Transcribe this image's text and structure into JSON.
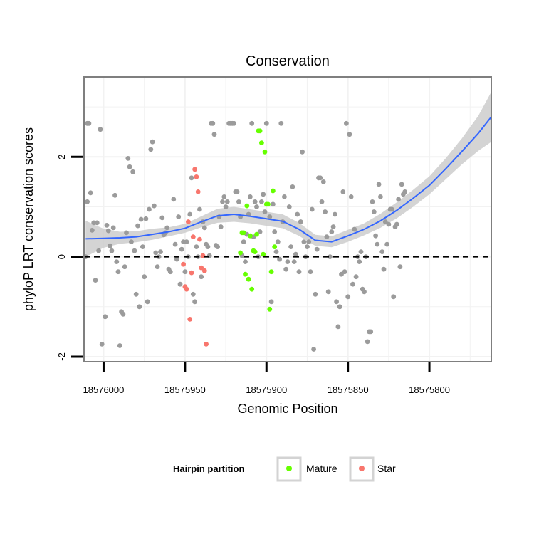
{
  "chart_data": {
    "type": "scatter",
    "title": "Conservation",
    "xlabel": "Genomic Position",
    "ylabel": "phyloP LRT conservation scores",
    "x_reversed": true,
    "xlim": [
      18576012,
      18575762
    ],
    "ylim": [
      -2.1,
      3.6
    ],
    "x_ticks": [
      18576000,
      18575950,
      18575900,
      18575850,
      18575800
    ],
    "y_ticks": [
      -2,
      0,
      2
    ],
    "reference_line": {
      "y": 0,
      "style": "dashed"
    },
    "grid": true,
    "legend": {
      "title": "Hairpin partition",
      "position": "bottom",
      "entries": [
        {
          "label": "Mature",
          "color": "#66ff00"
        },
        {
          "label": "Star",
          "color": "#f8766d"
        }
      ]
    },
    "colors": {
      "other": "#9b9b9b",
      "Mature": "#66ff00",
      "Star": "#f8766d",
      "smooth": "#3366ff",
      "ribbon": "#cccccc"
    },
    "smooth": {
      "x": [
        18576011,
        18576000,
        18575990,
        18575980,
        18575970,
        18575960,
        18575950,
        18575940,
        18575930,
        18575920,
        18575910,
        18575900,
        18575890,
        18575880,
        18575870,
        18575860,
        18575850,
        18575840,
        18575830,
        18575820,
        18575810,
        18575800,
        18575790,
        18575780,
        18575770,
        18575762
      ],
      "y": [
        0.36,
        0.37,
        0.38,
        0.4,
        0.45,
        0.5,
        0.57,
        0.7,
        0.82,
        0.85,
        0.81,
        0.76,
        0.71,
        0.55,
        0.33,
        0.3,
        0.42,
        0.55,
        0.72,
        0.93,
        1.17,
        1.43,
        1.76,
        2.11,
        2.47,
        2.8
      ],
      "lower": [
        0.0,
        0.18,
        0.26,
        0.29,
        0.34,
        0.41,
        0.48,
        0.59,
        0.68,
        0.7,
        0.67,
        0.62,
        0.57,
        0.42,
        0.22,
        0.19,
        0.3,
        0.43,
        0.58,
        0.77,
        1.0,
        1.25,
        1.55,
        1.85,
        2.12,
        2.3
      ],
      "upper": [
        0.72,
        0.56,
        0.5,
        0.51,
        0.56,
        0.59,
        0.66,
        0.81,
        0.96,
        1.0,
        0.95,
        0.9,
        0.85,
        0.68,
        0.44,
        0.41,
        0.54,
        0.67,
        0.86,
        1.09,
        1.34,
        1.61,
        1.97,
        2.37,
        2.82,
        3.3
      ]
    },
    "series": [
      {
        "name": "",
        "color": "#9b9b9b",
        "points": [
          [
            18576011,
            0.0
          ],
          [
            18576010,
            1.1
          ],
          [
            18576010,
            2.67
          ],
          [
            18576009,
            2.67
          ],
          [
            18576008,
            1.28
          ],
          [
            18576007,
            0.53
          ],
          [
            18576006,
            0.68
          ],
          [
            18576005,
            -0.47
          ],
          [
            18576004,
            0.68
          ],
          [
            18576003,
            0.12
          ],
          [
            18576002,
            2.55
          ],
          [
            18576001,
            -1.75
          ],
          [
            18575999,
            -1.2
          ],
          [
            18575998,
            0.63
          ],
          [
            18575997,
            0.52
          ],
          [
            18575996,
            0.22
          ],
          [
            18575995,
            0.12
          ],
          [
            18575994,
            0.58
          ],
          [
            18575993,
            1.23
          ],
          [
            18575992,
            -0.1
          ],
          [
            18575991,
            -0.3
          ],
          [
            18575990,
            -1.78
          ],
          [
            18575989,
            -1.1
          ],
          [
            18575988,
            -1.15
          ],
          [
            18575987,
            -0.2
          ],
          [
            18575986,
            0.48
          ],
          [
            18575985,
            1.97
          ],
          [
            18575984,
            1.8
          ],
          [
            18575983,
            0.3
          ],
          [
            18575982,
            1.7
          ],
          [
            18575981,
            0.12
          ],
          [
            18575980,
            -0.75
          ],
          [
            18575979,
            0.62
          ],
          [
            18575978,
            -1.0
          ],
          [
            18575977,
            0.75
          ],
          [
            18575976,
            0.2
          ],
          [
            18575975,
            -0.4
          ],
          [
            18575974,
            0.76
          ],
          [
            18575973,
            -0.9
          ],
          [
            18575972,
            0.95
          ],
          [
            18575971,
            2.15
          ],
          [
            18575970,
            2.3
          ],
          [
            18575969,
            1.02
          ],
          [
            18575968,
            0.08
          ],
          [
            18575967,
            -0.2
          ],
          [
            18575966,
            0.0
          ],
          [
            18575965,
            0.1
          ],
          [
            18575964,
            0.78
          ],
          [
            18575963,
            0.44
          ],
          [
            18575962,
            0.48
          ],
          [
            18575961,
            0.58
          ],
          [
            18575960,
            -0.25
          ],
          [
            18575959,
            -0.3
          ],
          [
            18575957,
            1.15
          ],
          [
            18575956,
            0.25
          ],
          [
            18575955,
            -0.05
          ],
          [
            18575954,
            0.8
          ],
          [
            18575953,
            -0.55
          ],
          [
            18575952,
            0.15
          ],
          [
            18575951,
            0.3
          ],
          [
            18575950,
            -0.3
          ],
          [
            18575949,
            0.3
          ],
          [
            18575948,
            0.0
          ],
          [
            18575947,
            0.85
          ],
          [
            18575946,
            1.58
          ],
          [
            18575945,
            -0.75
          ],
          [
            18575944,
            -0.9
          ],
          [
            18575943,
            0.2
          ],
          [
            18575942,
            0.0
          ],
          [
            18575941,
            0.95
          ],
          [
            18575940,
            -0.4
          ],
          [
            18575939,
            0.7
          ],
          [
            18575938,
            0.58
          ],
          [
            18575937,
            0.25
          ],
          [
            18575936,
            0.2
          ],
          [
            18575935,
            0.02
          ],
          [
            18575934,
            2.67
          ],
          [
            18575933,
            2.67
          ],
          [
            18575932,
            2.45
          ],
          [
            18575931,
            0.23
          ],
          [
            18575930,
            0.2
          ],
          [
            18575929,
            0.8
          ],
          [
            18575928,
            0.6
          ],
          [
            18575927,
            1.1
          ],
          [
            18575926,
            1.2
          ],
          [
            18575925,
            1.0
          ],
          [
            18575924,
            1.1
          ],
          [
            18575923,
            2.67
          ],
          [
            18575922,
            2.67
          ],
          [
            18575921,
            2.67
          ],
          [
            18575920,
            2.67
          ],
          [
            18575919,
            1.3
          ],
          [
            18575918,
            1.3
          ],
          [
            18575917,
            1.1
          ],
          [
            18575916,
            0.8
          ],
          [
            18575915,
            0.02
          ],
          [
            18575914,
            0.3
          ],
          [
            18575913,
            -0.1
          ],
          [
            18575912,
            0.45
          ],
          [
            18575911,
            0.85
          ],
          [
            18575910,
            1.2
          ],
          [
            18575909,
            2.67
          ],
          [
            18575908,
            0.4
          ],
          [
            18575907,
            1.1
          ],
          [
            18575906,
            1.0
          ],
          [
            18575905,
            0.0
          ],
          [
            18575904,
            0.5
          ],
          [
            18575903,
            1.1
          ],
          [
            18575902,
            1.25
          ],
          [
            18575901,
            0.9
          ],
          [
            18575900,
            2.67
          ],
          [
            18575898,
            0.8
          ],
          [
            18575897,
            -0.9
          ],
          [
            18575896,
            1.05
          ],
          [
            18575895,
            0.5
          ],
          [
            18575894,
            0.1
          ],
          [
            18575893,
            0.3
          ],
          [
            18575892,
            -0.05
          ],
          [
            18575891,
            2.67
          ],
          [
            18575890,
            0.7
          ],
          [
            18575889,
            1.2
          ],
          [
            18575888,
            -0.25
          ],
          [
            18575887,
            -0.1
          ],
          [
            18575886,
            1.0
          ],
          [
            18575885,
            0.2
          ],
          [
            18575884,
            1.4
          ],
          [
            18575883,
            -0.1
          ],
          [
            18575882,
            0.05
          ],
          [
            18575881,
            0.85
          ],
          [
            18575880,
            -0.3
          ],
          [
            18575879,
            0.7
          ],
          [
            18575878,
            2.1
          ],
          [
            18575877,
            0.3
          ],
          [
            18575876,
            0.0
          ],
          [
            18575875,
            0.2
          ],
          [
            18575874,
            0.3
          ],
          [
            18575873,
            -0.3
          ],
          [
            18575872,
            0.95
          ],
          [
            18575871,
            -1.85
          ],
          [
            18575870,
            -0.75
          ],
          [
            18575869,
            0.15
          ],
          [
            18575868,
            1.58
          ],
          [
            18575867,
            1.58
          ],
          [
            18575866,
            1.1
          ],
          [
            18575865,
            1.5
          ],
          [
            18575864,
            0.9
          ],
          [
            18575863,
            0.4
          ],
          [
            18575862,
            -0.7
          ],
          [
            18575861,
            0.0
          ],
          [
            18575860,
            0.5
          ],
          [
            18575859,
            0.6
          ],
          [
            18575858,
            0.85
          ],
          [
            18575857,
            -0.9
          ],
          [
            18575856,
            -1.4
          ],
          [
            18575855,
            -1.0
          ],
          [
            18575854,
            -0.35
          ],
          [
            18575853,
            1.3
          ],
          [
            18575852,
            -0.3
          ],
          [
            18575851,
            2.67
          ],
          [
            18575850,
            -0.8
          ],
          [
            18575849,
            2.45
          ],
          [
            18575848,
            1.2
          ],
          [
            18575847,
            -0.55
          ],
          [
            18575846,
            0.55
          ],
          [
            18575845,
            -0.4
          ],
          [
            18575844,
            0.0
          ],
          [
            18575843,
            -0.1
          ],
          [
            18575842,
            0.1
          ],
          [
            18575841,
            -0.65
          ],
          [
            18575840,
            -0.7
          ],
          [
            18575839,
            0.0
          ],
          [
            18575838,
            -1.7
          ],
          [
            18575837,
            -1.5
          ],
          [
            18575836,
            -1.5
          ],
          [
            18575835,
            1.1
          ],
          [
            18575834,
            0.9
          ],
          [
            18575833,
            0.42
          ],
          [
            18575832,
            0.25
          ],
          [
            18575831,
            1.45
          ],
          [
            18575830,
            1.2
          ],
          [
            18575829,
            0.1
          ],
          [
            18575828,
            -0.25
          ],
          [
            18575827,
            0.7
          ],
          [
            18575826,
            0.25
          ],
          [
            18575825,
            0.65
          ],
          [
            18575824,
            0.95
          ],
          [
            18575823,
            0.95
          ],
          [
            18575822,
            -0.8
          ],
          [
            18575821,
            0.6
          ],
          [
            18575820,
            0.65
          ],
          [
            18575819,
            1.15
          ],
          [
            18575818,
            -0.2
          ],
          [
            18575817,
            1.45
          ],
          [
            18575816,
            1.25
          ],
          [
            18575815,
            1.3
          ]
        ]
      },
      {
        "name": "Mature",
        "color": "#66ff00",
        "points": [
          [
            18575916,
            0.08
          ],
          [
            18575915,
            0.48
          ],
          [
            18575914,
            0.48
          ],
          [
            18575913,
            -0.35
          ],
          [
            18575912,
            1.02
          ],
          [
            18575911,
            -0.45
          ],
          [
            18575910,
            0.42
          ],
          [
            18575909,
            -0.65
          ],
          [
            18575908,
            0.12
          ],
          [
            18575907,
            0.1
          ],
          [
            18575906,
            0.45
          ],
          [
            18575905,
            2.52
          ],
          [
            18575904,
            2.52
          ],
          [
            18575903,
            2.28
          ],
          [
            18575902,
            0.05
          ],
          [
            18575901,
            2.1
          ],
          [
            18575900,
            1.05
          ],
          [
            18575899,
            1.05
          ],
          [
            18575898,
            -1.05
          ],
          [
            18575897,
            -0.3
          ],
          [
            18575896,
            1.32
          ],
          [
            18575895,
            0.2
          ]
        ]
      },
      {
        "name": "Star",
        "color": "#f8766d",
        "points": [
          [
            18575951,
            -0.15
          ],
          [
            18575950,
            -0.6
          ],
          [
            18575949,
            -0.65
          ],
          [
            18575948,
            0.7
          ],
          [
            18575947,
            -1.25
          ],
          [
            18575946,
            -0.32
          ],
          [
            18575945,
            0.4
          ],
          [
            18575944,
            1.75
          ],
          [
            18575943,
            1.6
          ],
          [
            18575942,
            1.3
          ],
          [
            18575941,
            0.35
          ],
          [
            18575940,
            -0.22
          ],
          [
            18575939,
            0.02
          ],
          [
            18575938,
            -0.28
          ],
          [
            18575937,
            -1.75
          ]
        ]
      }
    ]
  }
}
